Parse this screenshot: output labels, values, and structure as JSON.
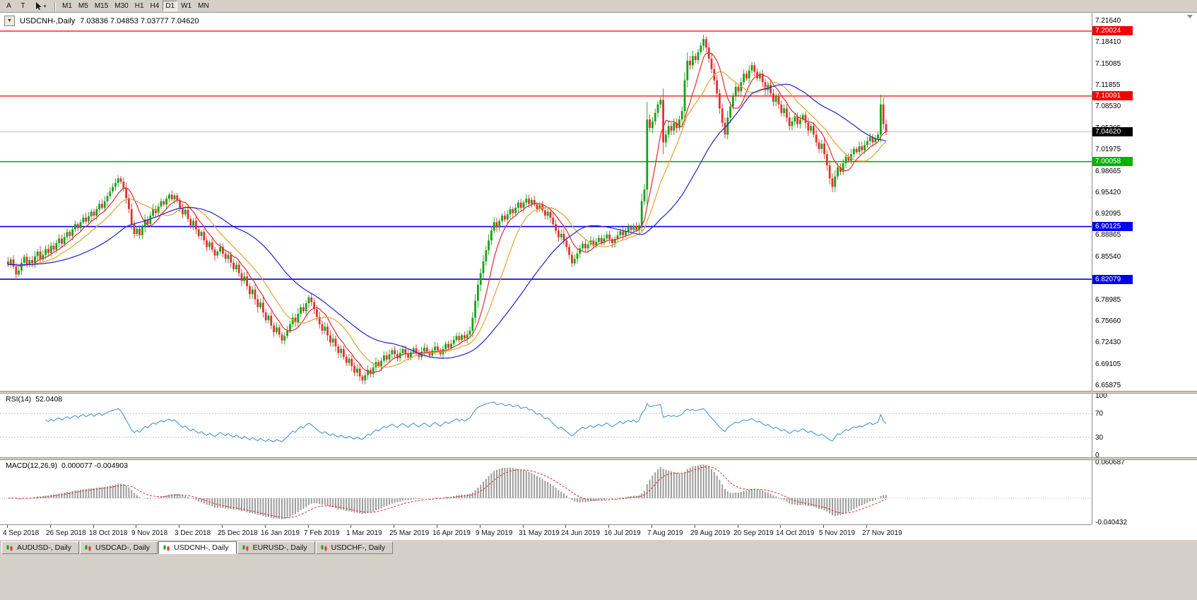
{
  "toolbar": {
    "left_buttons": [
      "A",
      "T"
    ],
    "cursor_tool_caret": "▾",
    "timeframes": [
      "M1",
      "M5",
      "M15",
      "M30",
      "H1",
      "H4",
      "D1",
      "W1",
      "MN"
    ],
    "active_timeframe": "D1"
  },
  "chart": {
    "collapse_glyph": "▼",
    "title_symbol": "USDCNH-,Daily",
    "ohlc_text": "7.03836 7.04853 7.03777 7.04620"
  },
  "price_scale": {
    "ticks": [
      "7.21640",
      "7.18410",
      "7.15085",
      "7.11855",
      "7.08530",
      "7.05205",
      "7.01975",
      "6.98665",
      "6.95420",
      "6.92095",
      "6.88865",
      "6.85540",
      "6.82295",
      "6.78985",
      "6.75660",
      "6.72430",
      "6.69105",
      "6.65875"
    ]
  },
  "chart_data": {
    "type": "candlestick",
    "symbol": "USDCNH-",
    "period": "Daily",
    "up_color": "#17a117",
    "down_color": "#e03131",
    "open_first": 6.848,
    "closes": [
      6.843,
      6.851,
      6.84,
      6.828,
      6.834,
      6.846,
      6.855,
      6.843,
      6.85,
      6.845,
      6.856,
      6.863,
      6.851,
      6.858,
      6.867,
      6.861,
      6.872,
      6.866,
      6.876,
      6.883,
      6.875,
      6.885,
      6.893,
      6.887,
      6.897,
      6.905,
      6.899,
      6.908,
      6.915,
      6.909,
      6.917,
      6.924,
      6.918,
      6.928,
      6.936,
      6.93,
      6.94,
      6.948,
      6.955,
      6.962,
      6.968,
      6.975,
      6.97,
      6.96,
      6.945,
      6.928,
      6.905,
      6.89,
      6.898,
      6.888,
      6.9,
      6.912,
      6.905,
      6.918,
      6.928,
      6.922,
      6.932,
      6.94,
      6.935,
      6.944,
      6.95,
      6.943,
      6.949,
      6.941,
      6.93,
      6.92,
      6.927,
      6.913,
      6.903,
      6.91,
      6.897,
      6.887,
      6.893,
      6.88,
      6.87,
      6.877,
      6.866,
      6.857,
      6.863,
      6.87,
      6.86,
      6.852,
      6.858,
      6.846,
      6.836,
      6.843,
      6.83,
      6.818,
      6.825,
      6.81,
      6.798,
      6.805,
      6.79,
      6.778,
      6.785,
      6.77,
      6.758,
      6.765,
      6.75,
      6.74,
      6.747,
      6.736,
      6.727,
      6.734,
      6.742,
      6.752,
      6.762,
      6.755,
      6.768,
      6.778,
      6.772,
      6.784,
      6.793,
      6.786,
      6.775,
      6.763,
      6.752,
      6.742,
      6.748,
      6.735,
      6.724,
      6.73,
      6.718,
      6.708,
      6.714,
      6.702,
      6.693,
      6.699,
      6.688,
      6.678,
      6.684,
      6.672,
      6.666,
      6.674,
      6.682,
      6.676,
      6.686,
      6.694,
      6.688,
      6.696,
      6.704,
      6.698,
      6.706,
      6.712,
      6.706,
      6.7,
      6.708,
      6.714,
      6.707,
      6.701,
      6.709,
      6.715,
      6.708,
      6.702,
      6.71,
      6.716,
      6.71,
      6.704,
      6.712,
      6.718,
      6.712,
      6.706,
      6.714,
      6.722,
      6.716,
      6.722,
      6.728,
      6.734,
      6.728,
      6.735,
      6.73,
      6.736,
      6.742,
      6.762,
      6.788,
      6.812,
      6.83,
      6.848,
      6.865,
      6.88,
      6.895,
      6.908,
      6.9,
      6.91,
      6.918,
      6.912,
      6.92,
      6.928,
      6.922,
      6.93,
      6.938,
      6.93,
      6.938,
      6.944,
      6.936,
      6.942,
      6.935,
      6.928,
      6.934,
      6.926,
      6.918,
      6.924,
      6.915,
      6.905,
      6.895,
      6.885,
      6.89,
      6.88,
      6.87,
      6.858,
      6.845,
      6.852,
      6.86,
      6.868,
      6.875,
      6.868,
      6.874,
      6.88,
      6.872,
      6.878,
      6.884,
      6.877,
      6.883,
      6.889,
      6.882,
      6.876,
      6.882,
      6.888,
      6.894,
      6.888,
      6.894,
      6.9,
      6.896,
      6.902,
      6.896,
      6.903,
      6.94,
      6.958,
      7.065,
      7.052,
      7.062,
      7.075,
      7.088,
      7.095,
      7.03,
      7.042,
      7.055,
      7.048,
      7.06,
      7.052,
      7.065,
      7.078,
      7.125,
      7.155,
      7.148,
      7.162,
      7.156,
      7.168,
      7.178,
      7.188,
      7.175,
      7.158,
      7.142,
      7.125,
      7.105,
      7.082,
      7.06,
      7.042,
      7.068,
      7.085,
      7.1,
      7.115,
      7.108,
      7.122,
      7.135,
      7.128,
      7.14,
      7.148,
      7.138,
      7.128,
      7.135,
      7.122,
      7.11,
      7.118,
      7.105,
      7.092,
      7.1,
      7.088,
      7.075,
      7.082,
      7.068,
      7.055,
      7.062,
      7.07,
      7.058,
      7.065,
      7.072,
      7.06,
      7.048,
      7.055,
      7.042,
      7.03,
      7.02,
      7.028,
      7.012,
      6.995,
      6.975,
      6.962,
      6.978,
      6.992,
      6.985,
      6.998,
      7.008,
      7.002,
      7.012,
      7.02,
      7.015,
      7.024,
      7.018,
      7.026,
      7.032,
      7.038,
      7.03,
      7.036,
      7.042,
      7.088,
      7.058,
      7.0462
    ],
    "x_labels": [
      "4 Sep 2018",
      "26 Sep 2018",
      "18 Oct 2018",
      "9 Nov 2018",
      "3 Dec 2018",
      "25 Dec 2018",
      "16 Jan 2019",
      "7 Feb 2019",
      "1 Mar 2019",
      "25 Mar 2019",
      "16 Apr 2019",
      "9 May 2019",
      "31 May 2019",
      "24 Jun 2019",
      "16 Jul 2019",
      "7 Aug 2019",
      "29 Aug 2019",
      "20 Sep 2019",
      "14 Oct 2019",
      "5 Nov 2019",
      "27 Nov 2019"
    ],
    "label_every": 16,
    "current_price": {
      "label": "7.04620",
      "value": 7.0462,
      "box_color": "#000000"
    },
    "price_lines": [
      {
        "label": "7.20024",
        "value": 7.20024,
        "color": "#f00000",
        "width": 1.2
      },
      {
        "label": "7.10091",
        "value": 7.10091,
        "color": "#f00000",
        "width": 1.2
      },
      {
        "label": "7.00058",
        "value": 7.00058,
        "color": "#00b400",
        "width": 1.6
      },
      {
        "label": "6.90125",
        "value": 6.90125,
        "color": "#0000f0",
        "width": 1.6
      },
      {
        "label": "6.82079",
        "value": 6.82079,
        "color": "#0000f0",
        "width": 1.6
      }
    ],
    "moving_averages": [
      {
        "period": 8,
        "color": "#e52b2b"
      },
      {
        "period": 16,
        "color": "#e2a431"
      },
      {
        "period": 40,
        "color": "#2121cc"
      }
    ],
    "rsi": {
      "label": "RSI(14)",
      "value": "52.0408",
      "period": 14,
      "color": "#4a96d2",
      "axis_labels": [
        "100",
        "70",
        "30",
        "0"
      ],
      "level_lines": [
        70,
        30
      ]
    },
    "macd": {
      "label": "MACD(12,26,9)",
      "values_text": "0.000077 -0.004903",
      "fast": 12,
      "slow": 26,
      "signal_period": 9,
      "axis_labels": [
        "0.060687",
        "-0.040432"
      ],
      "hist_color": "#9c9c9c",
      "signal_color": "#e03131"
    }
  },
  "bottom_tabs": [
    {
      "label": "AUDUSD-, Daily",
      "active": false
    },
    {
      "label": "USDCAD-, Daily",
      "active": false
    },
    {
      "label": "USDCNH-, Daily",
      "active": true
    },
    {
      "label": "EURUSD-, Daily",
      "active": false
    },
    {
      "label": "USDCHF-, Daily",
      "active": false
    }
  ]
}
